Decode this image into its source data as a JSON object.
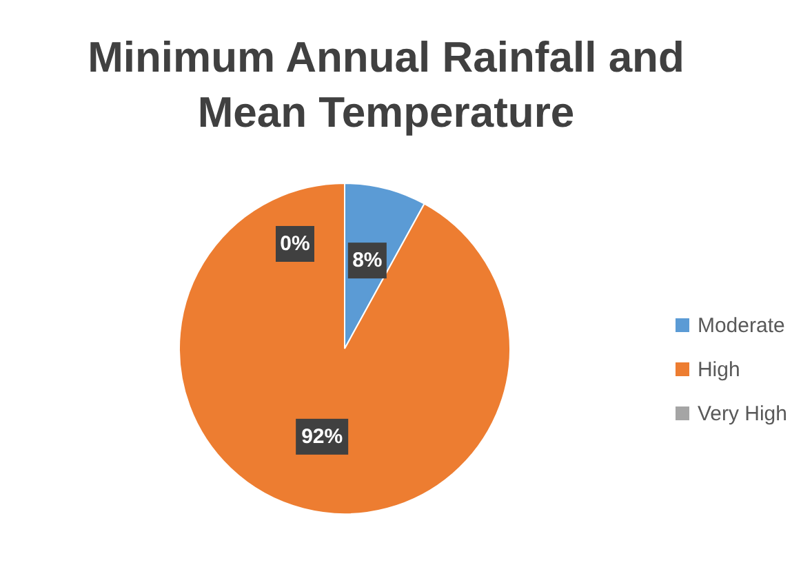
{
  "chart_data": {
    "type": "pie",
    "title": "Minimum Annual Rainfall and Mean Temperature",
    "categories": [
      "Moderate",
      "High",
      "Very High"
    ],
    "values": [
      8,
      92,
      0
    ],
    "colors": [
      "#5b9bd5",
      "#ed7d31",
      "#a5a5a5"
    ],
    "value_labels": [
      "8%",
      "92%",
      "0%"
    ],
    "legend": "right"
  }
}
